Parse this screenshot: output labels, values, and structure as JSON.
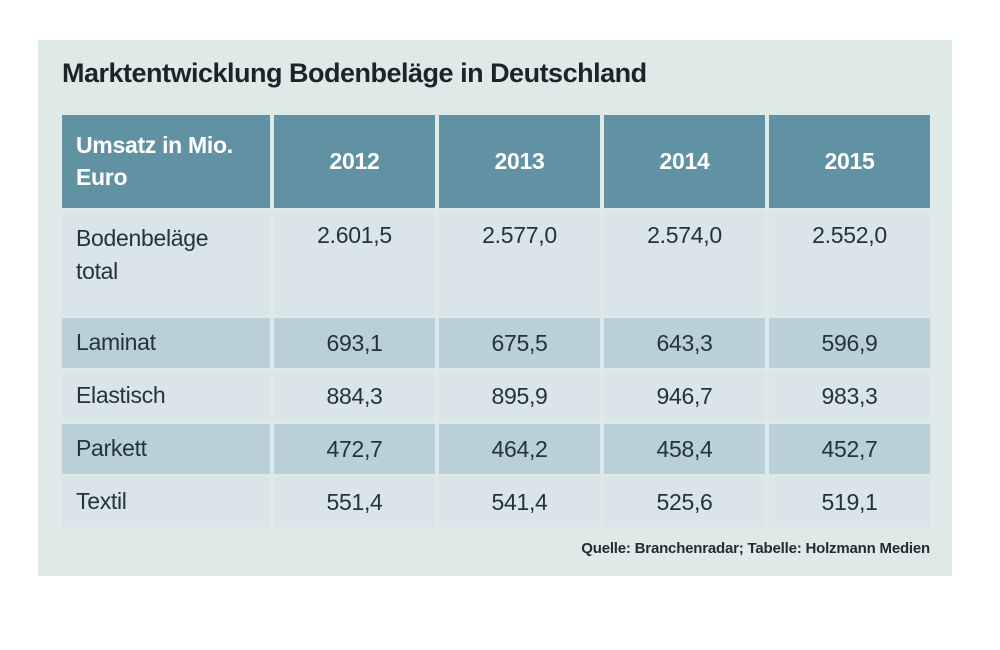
{
  "title": "Marktentwicklung Bodenbeläge in Deutschland",
  "table": {
    "corner_header": "Umsatz in Mio. Euro",
    "years": [
      "2012",
      "2013",
      "2014",
      "2015"
    ],
    "rows": [
      {
        "label": "Bodenbeläge total",
        "values": [
          "2.601,5",
          "2.577,0",
          "2.574,0",
          "2.552,0"
        ]
      },
      {
        "label": "Laminat",
        "values": [
          "693,1",
          "675,5",
          "643,3",
          "596,9"
        ]
      },
      {
        "label": "Elastisch",
        "values": [
          "884,3",
          "895,9",
          "946,7",
          "983,3"
        ]
      },
      {
        "label": "Parkett",
        "values": [
          "472,7",
          "464,2",
          "458,4",
          "452,7"
        ]
      },
      {
        "label": "Textil",
        "values": [
          "551,4",
          "541,4",
          "525,6",
          "519,1"
        ]
      }
    ]
  },
  "source": "Quelle: Branchenradar; Tabelle: Holzmann Medien",
  "colors": {
    "card_background": "#dfe9e8",
    "header_background": "#6192a3",
    "row_light": "#d9e5e8",
    "row_dark": "#b9d0d9",
    "title_text": "#1d2428",
    "cell_text": "#24333c",
    "header_text": "#ffffff"
  },
  "chart_data": {
    "type": "table",
    "title": "Marktentwicklung Bodenbeläge in Deutschland",
    "unit": "Umsatz in Mio. Euro",
    "columns": [
      "2012",
      "2013",
      "2014",
      "2015"
    ],
    "rows": [
      {
        "category": "Bodenbeläge total",
        "values": [
          2601.5,
          2577.0,
          2574.0,
          2552.0
        ]
      },
      {
        "category": "Laminat",
        "values": [
          693.1,
          675.5,
          643.3,
          596.9
        ]
      },
      {
        "category": "Elastisch",
        "values": [
          884.3,
          895.9,
          946.7,
          983.3
        ]
      },
      {
        "category": "Parkett",
        "values": [
          472.7,
          464.2,
          458.4,
          452.7
        ]
      },
      {
        "category": "Textil",
        "values": [
          551.4,
          541.4,
          525.6,
          519.1
        ]
      }
    ],
    "source": "Quelle: Branchenradar; Tabelle: Holzmann Medien"
  }
}
